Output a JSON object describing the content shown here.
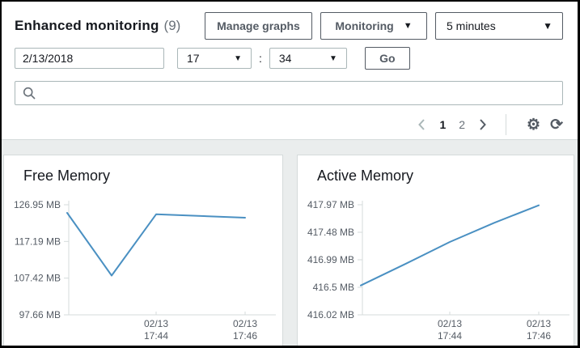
{
  "header": {
    "title": "Enhanced monitoring",
    "count": "(9)",
    "buttons": {
      "manage_graphs": "Manage graphs",
      "monitoring": "Monitoring",
      "interval": "5 minutes"
    },
    "time_controls": {
      "date": "2/13/2018",
      "hour": "17",
      "separator": ":",
      "minute": "34",
      "go": "Go"
    },
    "search": {
      "value": "",
      "placeholder": ""
    }
  },
  "pagination": {
    "pages": [
      "1",
      "2"
    ],
    "current_page": "1"
  },
  "icons": {
    "dropdown_arrow": "▼",
    "gear": "⚙",
    "refresh": "⟳"
  },
  "colors": {
    "accent_border": "#545b64",
    "text_dark": "#16191f",
    "text_gray": "#687078",
    "light_border": "#aab7b8",
    "panel_bg": "#eaeded",
    "axis": "#d5dbdb",
    "axis_text": "#545b64",
    "line_blue": "#4a90c2"
  },
  "chart_data": [
    {
      "type": "line",
      "title": "Free Memory",
      "unit": "MB",
      "grid": false,
      "legend": "none",
      "y_ticks": [
        {
          "label": "126.95 MB",
          "value": 126.95
        },
        {
          "label": "117.19 MB",
          "value": 117.19
        },
        {
          "label": "107.42 MB",
          "value": 107.42
        },
        {
          "label": "97.66 MB",
          "value": 97.66
        }
      ],
      "x_ticks": [
        {
          "date": "02/13",
          "time": "17:44",
          "minute": 44
        },
        {
          "date": "02/13",
          "time": "17:46",
          "minute": 46
        }
      ],
      "x_range": [
        "17:42",
        "17:46"
      ],
      "series": [
        {
          "name": "Free Memory",
          "color": "#4a90c2",
          "points": [
            {
              "time": "17:42",
              "minute": 42,
              "value": 124.8
            },
            {
              "time": "17:43",
              "minute": 43,
              "value": 108.1
            },
            {
              "time": "17:44",
              "minute": 44,
              "value": 124.4
            },
            {
              "time": "17:46",
              "minute": 46,
              "value": 123.5
            }
          ]
        }
      ]
    },
    {
      "type": "line",
      "title": "Active Memory",
      "unit": "MB",
      "grid": false,
      "legend": "none",
      "y_ticks": [
        {
          "label": "417.97 MB",
          "value": 417.97
        },
        {
          "label": "417.48 MB",
          "value": 417.48
        },
        {
          "label": "416.99 MB",
          "value": 416.99
        },
        {
          "label": "416.5 MB",
          "value": 416.5
        },
        {
          "label": "416.02 MB",
          "value": 416.02
        }
      ],
      "x_ticks": [
        {
          "date": "02/13",
          "time": "17:44",
          "minute": 44
        },
        {
          "date": "02/13",
          "time": "17:46",
          "minute": 46
        }
      ],
      "x_range": [
        "17:42",
        "17:46"
      ],
      "series": [
        {
          "name": "Active Memory",
          "color": "#4a90c2",
          "points": [
            {
              "time": "17:42",
              "minute": 42,
              "value": 416.54
            },
            {
              "time": "17:43",
              "minute": 43,
              "value": 416.92
            },
            {
              "time": "17:44",
              "minute": 44,
              "value": 417.31
            },
            {
              "time": "17:45",
              "minute": 45,
              "value": 417.65
            },
            {
              "time": "17:46",
              "minute": 46,
              "value": 417.96
            }
          ]
        }
      ]
    }
  ]
}
